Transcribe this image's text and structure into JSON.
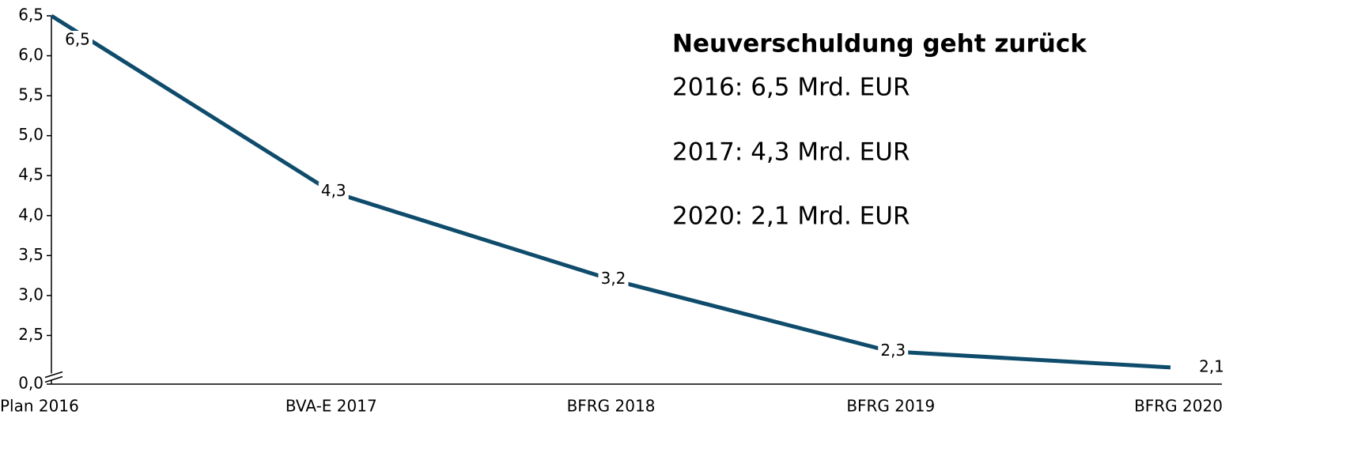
{
  "chart_data": {
    "type": "line",
    "categories": [
      "Plan 2016",
      "BVA-E 2017",
      "BFRG 2018",
      "BFRG 2019",
      "BFRG 2020"
    ],
    "series": [
      {
        "color": "#0f4c6c",
        "values": [
          6.5,
          4.3,
          3.2,
          2.3,
          2.1
        ],
        "value_labels": [
          "6,5",
          "4,3",
          "3,2",
          "2,3",
          "2,1"
        ]
      }
    ],
    "ylim": [
      0,
      6.5
    ],
    "yticks": [
      {
        "value": 0,
        "label": "0,0"
      },
      {
        "value": 2.5,
        "label": "2,5"
      },
      {
        "value": 3,
        "label": "3,0"
      },
      {
        "value": 3.5,
        "label": "3,5"
      },
      {
        "value": 4,
        "label": "4,0"
      },
      {
        "value": 4.5,
        "label": "4,5"
      },
      {
        "value": 5,
        "label": "5,0"
      },
      {
        "value": 5.5,
        "label": "5,5"
      },
      {
        "value": 6,
        "label": "6,0"
      },
      {
        "value": 6.5,
        "label": "6,5"
      }
    ],
    "axis_break": true,
    "annotation": {
      "title": "Neuverschuldung geht zurück",
      "lines": [
        "2016: 6,5 Mrd. EUR",
        "2017: 4,3 Mrd. EUR",
        "2020: 2,1 Mrd. EUR"
      ]
    }
  }
}
